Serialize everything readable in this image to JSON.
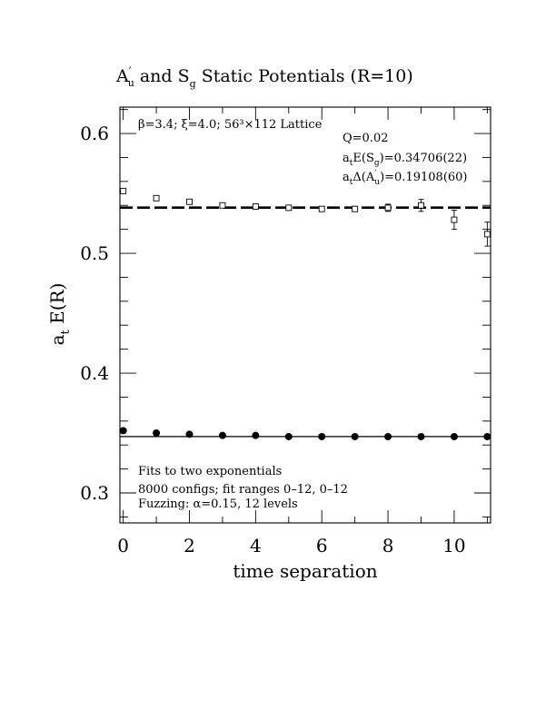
{
  "figure": {
    "title_parts": [
      "A",
      "′",
      "u",
      " and S",
      "g",
      " Static Potentials (R=10)"
    ],
    "xlabel": "time separation",
    "ylabel_parts": [
      "a",
      "t",
      " E(R)"
    ],
    "notes": {
      "lattice": "β=3.4; ξ=4.0; 56³×112 Lattice",
      "q": "Q=0.02",
      "energy_parts": [
        "a",
        "t",
        "E(S",
        "g",
        ")=0.34706(22)"
      ],
      "gap_parts": [
        "a",
        "t",
        "Δ(A",
        "′",
        "u",
        ")=0.19108(60)"
      ],
      "fits": "Fits to two exponentials",
      "configs": "8000 configs; fit ranges 0–12, 0–12",
      "fuzzing": "Fuzzing: α=0.15, 12 levels"
    }
  },
  "chart_data": {
    "type": "scatter",
    "title": "A′u and Sg Static Potentials (R=10)",
    "xlabel": "time separation",
    "ylabel": "at E(R)",
    "xlim": [
      -0.1,
      11.1
    ],
    "ylim": [
      0.275,
      0.622
    ],
    "x_ticks": [
      0,
      2,
      4,
      6,
      8,
      10
    ],
    "y_ticks": [
      0.3,
      0.4,
      0.5,
      0.6
    ],
    "x_tick_labels": [
      "0",
      "2",
      "4",
      "6",
      "8",
      "10"
    ],
    "y_tick_labels": [
      "0.3",
      "0.4",
      "0.5",
      "0.6"
    ],
    "series": [
      {
        "marker": "open-square",
        "x": [
          0,
          1,
          2,
          3,
          4,
          5,
          6,
          7,
          8,
          9,
          10,
          11
        ],
        "y": [
          0.552,
          0.546,
          0.543,
          0.54,
          0.539,
          0.538,
          0.537,
          0.537,
          0.538,
          0.54,
          0.528,
          0.516
        ],
        "err": [
          0.0005,
          0.0006,
          0.0008,
          0.001,
          0.0012,
          0.0015,
          0.0018,
          0.0022,
          0.003,
          0.005,
          0.008,
          0.01
        ]
      },
      {
        "marker": "filled-circle",
        "x": [
          0,
          1,
          2,
          3,
          4,
          5,
          6,
          7,
          8,
          9,
          10,
          11
        ],
        "y": [
          0.352,
          0.35,
          0.349,
          0.348,
          0.348,
          0.347,
          0.347,
          0.347,
          0.347,
          0.347,
          0.347,
          0.347
        ],
        "err": [
          0.0003,
          0.0003,
          0.0003,
          0.0003,
          0.0003,
          0.0003,
          0.0003,
          0.0003,
          0.0004,
          0.0005,
          0.0006,
          0.0008
        ]
      }
    ],
    "fit_lines": [
      {
        "y": 0.53814,
        "style": "dashed"
      },
      {
        "y": 0.34706,
        "style": "solid"
      }
    ]
  }
}
